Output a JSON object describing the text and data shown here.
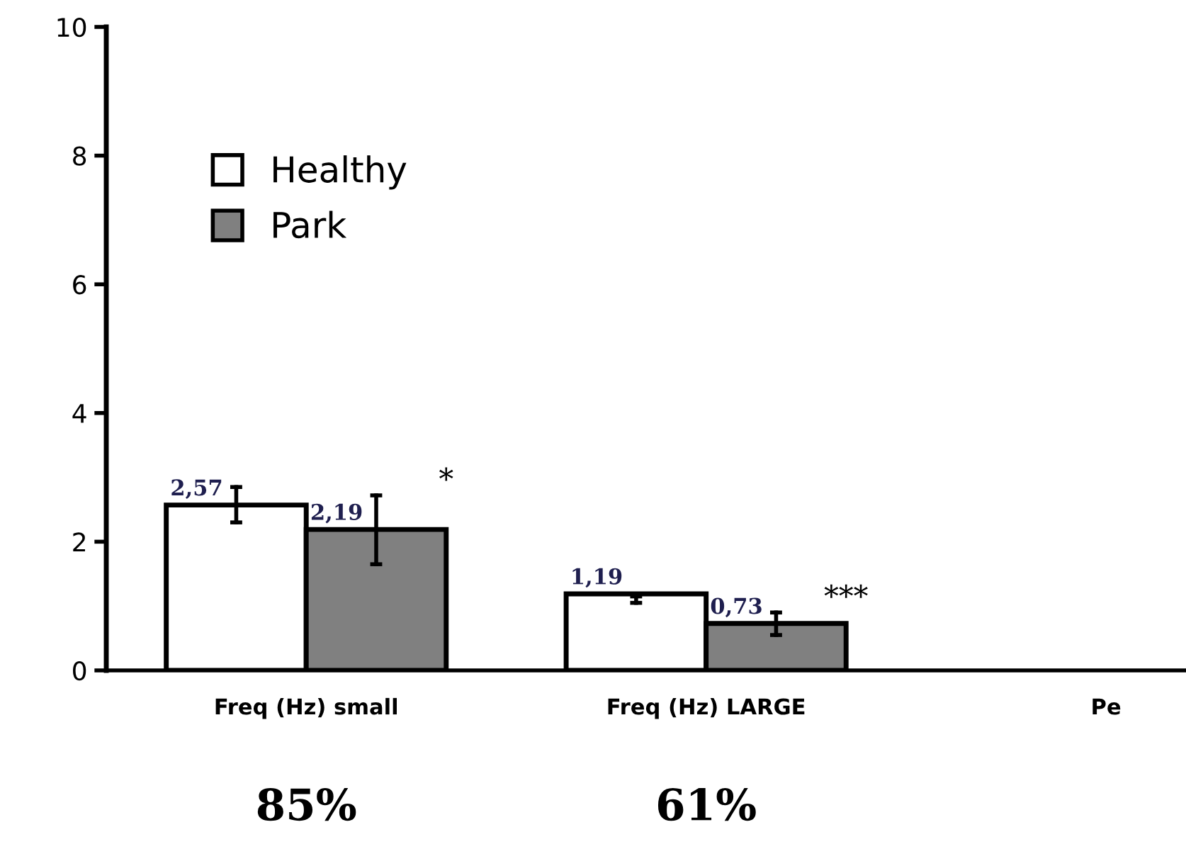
{
  "chart_data": {
    "type": "bar",
    "categories": [
      "Freq (Hz) small",
      "Freq (Hz) LARGE",
      "Pe"
    ],
    "series": [
      {
        "name": "Healthy",
        "color": "#ffffff",
        "values": [
          2.57,
          1.19,
          null
        ],
        "errors": [
          [
            2.3,
            2.85
          ],
          [
            1.05,
            1.15
          ],
          null
        ],
        "value_labels": [
          "2,57",
          "1,19",
          null
        ]
      },
      {
        "name": "Park",
        "color": "#808080",
        "values": [
          2.19,
          0.73,
          null
        ],
        "errors": [
          [
            1.65,
            2.72
          ],
          [
            0.55,
            0.9
          ],
          null
        ],
        "value_labels": [
          "2,19",
          "0,73",
          null
        ]
      }
    ],
    "ylim": [
      0,
      10
    ],
    "yticks": [
      0,
      2,
      4,
      6,
      8,
      10
    ],
    "grid": false,
    "legend": "top left",
    "annotations": [
      "*",
      "***",
      "85%",
      "61%"
    ]
  }
}
